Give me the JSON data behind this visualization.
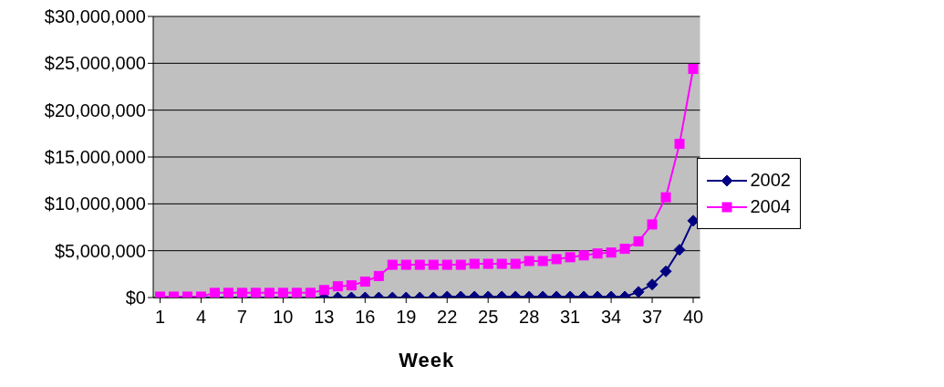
{
  "chart_data": {
    "type": "line",
    "xlabel": "Week",
    "x": [
      1,
      2,
      3,
      4,
      5,
      6,
      7,
      8,
      9,
      10,
      11,
      12,
      13,
      14,
      15,
      16,
      17,
      18,
      19,
      20,
      21,
      22,
      23,
      24,
      25,
      26,
      27,
      28,
      29,
      30,
      31,
      32,
      33,
      34,
      35,
      36,
      37,
      38,
      39,
      40
    ],
    "xlim": [
      0.5,
      40.5
    ],
    "xticks": [
      1,
      4,
      7,
      10,
      13,
      16,
      19,
      22,
      25,
      28,
      31,
      34,
      37,
      40
    ],
    "ylim": [
      0,
      30000000
    ],
    "yticks": [
      {
        "value": 0,
        "label": "$0"
      },
      {
        "value": 5000000,
        "label": "$5,000,000"
      },
      {
        "value": 10000000,
        "label": "$10,000,000"
      },
      {
        "value": 15000000,
        "label": "$15,000,000"
      },
      {
        "value": 20000000,
        "label": "$20,000,000"
      },
      {
        "value": 25000000,
        "label": "$25,000,000"
      },
      {
        "value": 30000000,
        "label": "$30,000,000"
      }
    ],
    "grid": "y",
    "legend": "right",
    "series": [
      {
        "name": "2002",
        "color": "#000080",
        "marker": "diamond",
        "values": [
          null,
          null,
          0,
          0,
          0,
          0,
          0,
          0,
          0,
          0,
          0,
          0,
          0,
          0,
          0,
          0,
          0,
          0,
          0,
          0,
          0,
          100000,
          100000,
          100000,
          100000,
          100000,
          100000,
          100000,
          100000,
          100000,
          100000,
          100000,
          100000,
          100000,
          100000,
          600000,
          1400000,
          2800000,
          5100000,
          8200000
        ]
      },
      {
        "name": "2004",
        "color": "#ff00ff",
        "marker": "square",
        "values": [
          100000,
          100000,
          100000,
          100000,
          500000,
          500000,
          500000,
          500000,
          500000,
          500000,
          500000,
          500000,
          800000,
          1200000,
          1300000,
          1700000,
          2300000,
          3500000,
          3500000,
          3500000,
          3500000,
          3500000,
          3500000,
          3600000,
          3600000,
          3600000,
          3600000,
          3900000,
          3900000,
          4100000,
          4300000,
          4500000,
          4700000,
          4800000,
          5200000,
          6000000,
          7800000,
          10700000,
          16400000,
          24400000
        ]
      }
    ]
  }
}
